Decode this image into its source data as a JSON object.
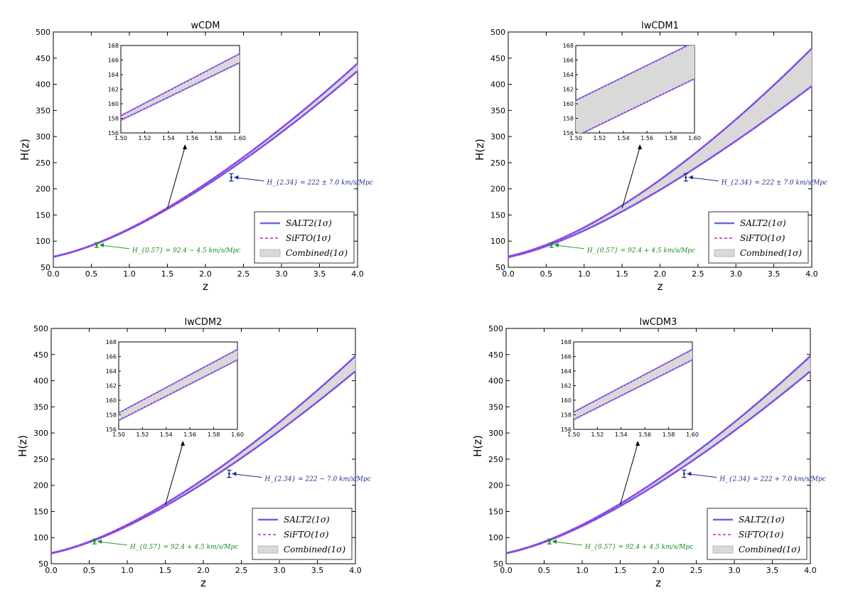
{
  "chart_data": [
    {
      "type": "line",
      "title": "wCDM",
      "xlabel": "z",
      "ylabel": "H(z)",
      "xlim": [
        0.0,
        4.0
      ],
      "ylim": [
        50,
        500
      ],
      "xticks": [
        "0.0",
        "0.5",
        "1.0",
        "1.5",
        "2.0",
        "2.5",
        "3.0",
        "3.5",
        "4.0"
      ],
      "yticks": [
        "50",
        "100",
        "150",
        "200",
        "250",
        "300",
        "350",
        "400",
        "450",
        "500"
      ],
      "model": {
        "H0": 70,
        "Om": 0.3,
        "w0": -1.0,
        "w1": 0.0,
        "spread": 0.8
      },
      "series": [
        {
          "name": "SALT2(1σ)",
          "values": [
            70.0,
            161.5,
            421.7
          ]
        },
        {
          "name": "SiFTO(1σ)",
          "values": [
            70.0,
            161.5,
            421.7
          ]
        },
        {
          "name": "Combined(1σ)",
          "values": [
            70.0,
            161.5,
            421.7
          ]
        }
      ],
      "legend": {
        "position": "lower-right",
        "entries": [
          "SALT2(1σ)",
          "SiFTO(1σ)",
          "Combined(1σ)"
        ],
        "colors": [
          "#6666ee",
          "#cc22cc",
          "#d9d9d9"
        ]
      },
      "points": [
        {
          "z": 2.34,
          "H": 222,
          "err": 7.0,
          "color": "#1a2a8c",
          "label": "H_{2.34} = 222 ± 7.0 km/s/Mpc"
        },
        {
          "z": 0.57,
          "H": 92.4,
          "err": 4.5,
          "color": "#1a8c1a",
          "label": "H_{0.57} = 92.4 − 4.5 km/s/Mpc"
        }
      ],
      "inset": {
        "xlim": [
          1.5,
          1.6
        ],
        "ylim": [
          156,
          168
        ],
        "xticks": [
          "1.50",
          "1.52",
          "1.54",
          "1.56",
          "1.58",
          "1.60"
        ],
        "yticks": [
          "156",
          "158",
          "160",
          "162",
          "164",
          "166",
          "168"
        ],
        "band": [
          [
            158.4,
            166.9
          ],
          [
            157.7,
            165.6
          ]
        ]
      }
    },
    {
      "type": "line",
      "title": "lwCDM1",
      "xlabel": "z",
      "ylabel": "H(z)",
      "xlim": [
        0.0,
        4.0
      ],
      "ylim": [
        50,
        500
      ],
      "xticks": [
        "0.0",
        "0.5",
        "1.0",
        "1.5",
        "2.0",
        "2.5",
        "3.0",
        "3.5",
        "4.0"
      ],
      "yticks": [
        "50",
        "100",
        "150",
        "200",
        "250",
        "300",
        "350",
        "400",
        "450",
        "500"
      ],
      "model": {
        "H0": 70,
        "Om": 0.3,
        "w0": -1.0,
        "w1": 0.0,
        "spread": 4.0
      },
      "series": [
        {
          "name": "SALT2(1σ)",
          "values": [
            70.0,
            161.5,
            421.7
          ]
        },
        {
          "name": "SiFTO(1σ)",
          "values": [
            70.0,
            161.5,
            421.7
          ]
        },
        {
          "name": "Combined(1σ)",
          "values": [
            70.0,
            161.5,
            421.7
          ]
        }
      ],
      "legend": {
        "position": "lower-right",
        "entries": [
          "SALT2(1σ)",
          "SiFTO(1σ)",
          "Combined(1σ)"
        ],
        "colors": [
          "#6666ee",
          "#cc22cc",
          "#d9d9d9"
        ]
      },
      "points": [
        {
          "z": 2.34,
          "H": 222,
          "err": 7.0,
          "color": "#1a2a8c",
          "label": "H_{2.34} = 222 ± 7.0 km/s/Mpc"
        },
        {
          "z": 0.57,
          "H": 92.4,
          "err": 4.5,
          "color": "#1a8c1a",
          "label": "H_{0.57} = 92.4 + 4.5 km/s/Mpc"
        }
      ],
      "inset": {
        "xlim": [
          1.5,
          1.6
        ],
        "ylim": [
          156,
          168
        ],
        "xticks": [
          "1.50",
          "1.52",
          "1.54",
          "1.56",
          "1.58",
          "1.60"
        ],
        "yticks": [
          "156",
          "158",
          "160",
          "162",
          "164",
          "166",
          "168"
        ],
        "band": [
          [
            160.5,
            168.5
          ],
          [
            155.5,
            163.4
          ]
        ]
      }
    },
    {
      "type": "line",
      "title": "lwCDM2",
      "xlabel": "z",
      "ylabel": "H(z)",
      "xlim": [
        0.0,
        4.0
      ],
      "ylim": [
        50,
        500
      ],
      "xticks": [
        "0.0",
        "0.5",
        "1.0",
        "1.5",
        "2.0",
        "2.5",
        "3.0",
        "3.5",
        "4.0"
      ],
      "yticks": [
        "50",
        "100",
        "150",
        "200",
        "250",
        "300",
        "350",
        "400",
        "450",
        "500"
      ],
      "model": {
        "H0": 70,
        "Om": 0.3,
        "w0": -1.0,
        "w1": 0.0,
        "spread": 1.6
      },
      "series": [
        {
          "name": "SALT2(1σ)",
          "values": [
            70.0,
            161.5,
            421.7
          ]
        },
        {
          "name": "SiFTO(1σ)",
          "values": [
            70.0,
            161.5,
            421.7
          ]
        },
        {
          "name": "Combined(1σ)",
          "values": [
            70.0,
            161.5,
            421.7
          ]
        }
      ],
      "legend": {
        "position": "lower-right",
        "entries": [
          "SALT2(1σ)",
          "SiFTO(1σ)",
          "Combined(1σ)"
        ],
        "colors": [
          "#6666ee",
          "#cc22cc",
          "#d9d9d9"
        ]
      },
      "points": [
        {
          "z": 2.34,
          "H": 222,
          "err": 7.0,
          "color": "#1a2a8c",
          "label": "H_{2.34} = 222 − 7.0 km/s/Mpc"
        },
        {
          "z": 0.57,
          "H": 92.4,
          "err": 4.5,
          "color": "#1a8c1a",
          "label": "H_{0.57} = 92.4 + 4.5 km/s/Mpc"
        }
      ],
      "inset": {
        "xlim": [
          1.5,
          1.6
        ],
        "ylim": [
          156,
          168
        ],
        "xticks": [
          "1.50",
          "1.52",
          "1.54",
          "1.56",
          "1.58",
          "1.60"
        ],
        "yticks": [
          "156",
          "158",
          "160",
          "162",
          "164",
          "166",
          "168"
        ],
        "band": [
          [
            158.3,
            167.0
          ],
          [
            157.2,
            165.5
          ]
        ]
      }
    },
    {
      "type": "line",
      "title": "lwCDM3",
      "xlabel": "z",
      "ylabel": "H(z)",
      "xlim": [
        0.0,
        4.0
      ],
      "ylim": [
        50,
        500
      ],
      "xticks": [
        "0.0",
        "0.5",
        "1.0",
        "1.5",
        "2.0",
        "2.5",
        "3.0",
        "3.5",
        "4.0"
      ],
      "yticks": [
        "50",
        "100",
        "150",
        "200",
        "250",
        "300",
        "350",
        "400",
        "450",
        "500"
      ],
      "model": {
        "H0": 70,
        "Om": 0.3,
        "w0": -1.0,
        "w1": 0.0,
        "spread": 1.6
      },
      "series": [
        {
          "name": "SALT2(1σ)",
          "values": [
            70.0,
            161.5,
            421.7
          ]
        },
        {
          "name": "SiFTO(1σ)",
          "values": [
            70.0,
            161.5,
            421.7
          ]
        },
        {
          "name": "Combined(1σ)",
          "values": [
            70.0,
            161.5,
            421.7
          ]
        }
      ],
      "legend": {
        "position": "lower-right",
        "entries": [
          "SALT2(1σ)",
          "SiFTO(1σ)",
          "Combined(1σ)"
        ],
        "colors": [
          "#6666ee",
          "#cc22cc",
          "#d9d9d9"
        ]
      },
      "points": [
        {
          "z": 2.34,
          "H": 222,
          "err": 7.0,
          "color": "#1a2a8c",
          "label": "H_{2.34} = 222 + 7.0 km/s/Mpc"
        },
        {
          "z": 0.57,
          "H": 92.4,
          "err": 4.5,
          "color": "#1a8c1a",
          "label": "H_{0.57} = 92.4 + 4.5 km/s/Mpc"
        }
      ],
      "inset": {
        "xlim": [
          1.5,
          1.6
        ],
        "ylim": [
          156,
          168
        ],
        "xticks": [
          "1.50",
          "1.52",
          "1.54",
          "1.56",
          "1.58",
          "1.60"
        ],
        "yticks": [
          "156",
          "158",
          "160",
          "162",
          "164",
          "166",
          "168"
        ],
        "band": [
          [
            158.4,
            167.0
          ],
          [
            157.3,
            165.5
          ]
        ]
      }
    }
  ]
}
